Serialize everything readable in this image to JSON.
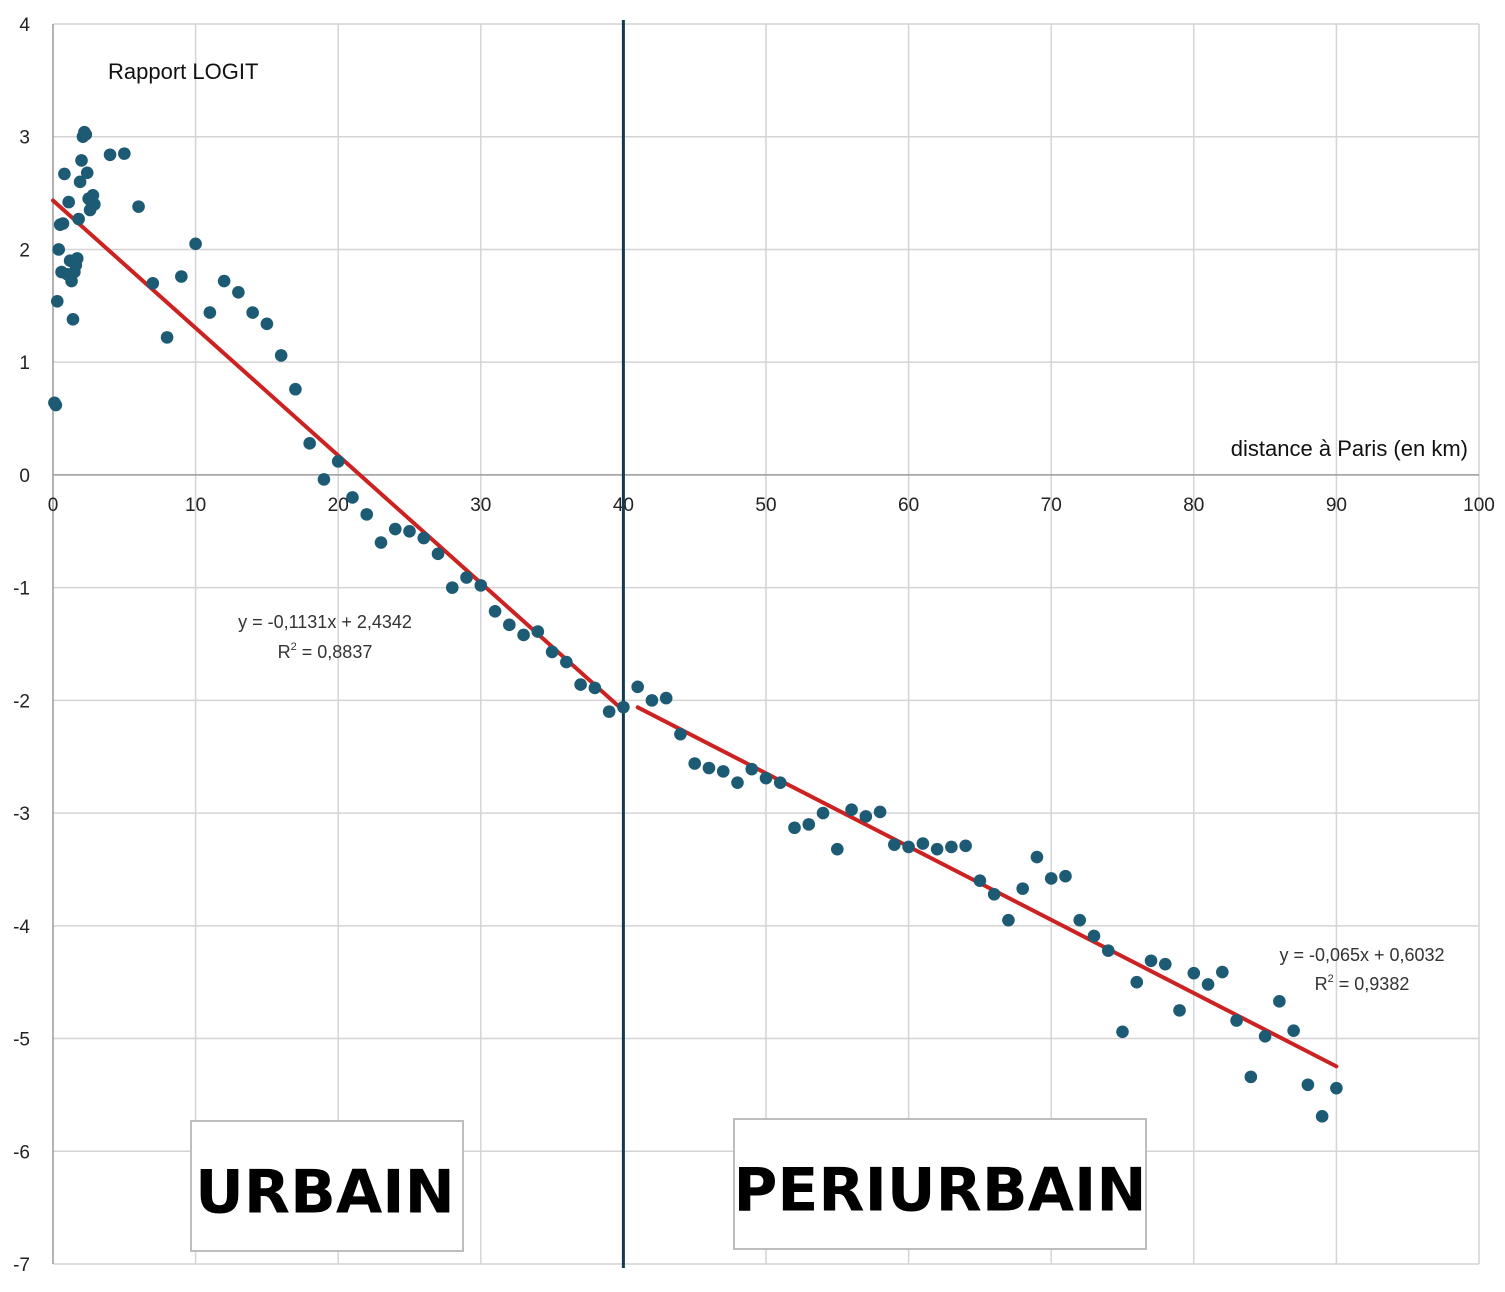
{
  "chart_data": {
    "type": "scatter",
    "title": "",
    "xlabel": "distance à Paris (en km)",
    "ylabel": "Rapport LOGIT",
    "xlim": [
      0,
      100
    ],
    "ylim": [
      -7,
      4
    ],
    "x_ticks": [
      0,
      10,
      20,
      30,
      40,
      50,
      60,
      70,
      80,
      90,
      100
    ],
    "y_ticks": [
      4,
      3,
      2,
      1,
      0,
      -1,
      -2,
      -3,
      -4,
      -5,
      -6,
      -7
    ],
    "grid": true,
    "colors": {
      "points": "#1d5a74",
      "trend": "#cc2222",
      "separator": "#143a52",
      "grid": "#d4d4d4"
    },
    "separator_x": 40,
    "points": [
      [
        0.1,
        0.64
      ],
      [
        0.2,
        0.62
      ],
      [
        0.3,
        1.54
      ],
      [
        0.4,
        2.0
      ],
      [
        0.5,
        2.22
      ],
      [
        0.6,
        1.8
      ],
      [
        0.7,
        2.23
      ],
      [
        0.8,
        2.67
      ],
      [
        1.0,
        1.78
      ],
      [
        1.1,
        2.42
      ],
      [
        1.2,
        1.9
      ],
      [
        1.3,
        1.72
      ],
      [
        1.4,
        1.38
      ],
      [
        1.5,
        1.8
      ],
      [
        1.6,
        1.86
      ],
      [
        1.7,
        1.92
      ],
      [
        1.8,
        2.27
      ],
      [
        1.9,
        2.6
      ],
      [
        2.0,
        2.79
      ],
      [
        2.1,
        3.0
      ],
      [
        2.2,
        3.04
      ],
      [
        2.3,
        3.02
      ],
      [
        2.4,
        2.68
      ],
      [
        2.5,
        2.45
      ],
      [
        2.6,
        2.35
      ],
      [
        2.7,
        2.42
      ],
      [
        2.8,
        2.48
      ],
      [
        2.9,
        2.4
      ],
      [
        4,
        2.84
      ],
      [
        5,
        2.85
      ],
      [
        6,
        2.38
      ],
      [
        7,
        1.7
      ],
      [
        8,
        1.22
      ],
      [
        9,
        1.76
      ],
      [
        10,
        2.05
      ],
      [
        11,
        1.44
      ],
      [
        12,
        1.72
      ],
      [
        13,
        1.62
      ],
      [
        14,
        1.44
      ],
      [
        15,
        1.34
      ],
      [
        16,
        1.06
      ],
      [
        17,
        0.76
      ],
      [
        18,
        0.28
      ],
      [
        19,
        -0.04
      ],
      [
        20,
        0.12
      ],
      [
        21,
        -0.2
      ],
      [
        22,
        -0.35
      ],
      [
        23,
        -0.6
      ],
      [
        24,
        -0.48
      ],
      [
        25,
        -0.5
      ],
      [
        26,
        -0.56
      ],
      [
        27,
        -0.7
      ],
      [
        28,
        -1.0
      ],
      [
        29,
        -0.91
      ],
      [
        30,
        -0.98
      ],
      [
        31,
        -1.21
      ],
      [
        32,
        -1.33
      ],
      [
        33,
        -1.42
      ],
      [
        34,
        -1.39
      ],
      [
        35,
        -1.57
      ],
      [
        36,
        -1.66
      ],
      [
        37,
        -1.86
      ],
      [
        38,
        -1.89
      ],
      [
        39,
        -2.1
      ],
      [
        40,
        -2.06
      ],
      [
        41,
        -1.88
      ],
      [
        42,
        -2.0
      ],
      [
        43,
        -1.98
      ],
      [
        44,
        -2.3
      ],
      [
        45,
        -2.56
      ],
      [
        46,
        -2.6
      ],
      [
        47,
        -2.63
      ],
      [
        48,
        -2.73
      ],
      [
        49,
        -2.61
      ],
      [
        50,
        -2.69
      ],
      [
        51,
        -2.73
      ],
      [
        52,
        -3.13
      ],
      [
        53,
        -3.1
      ],
      [
        54,
        -3.0
      ],
      [
        55,
        -3.32
      ],
      [
        56,
        -2.97
      ],
      [
        57,
        -3.03
      ],
      [
        58,
        -2.99
      ],
      [
        59,
        -3.28
      ],
      [
        60,
        -3.3
      ],
      [
        61,
        -3.27
      ],
      [
        62,
        -3.32
      ],
      [
        63,
        -3.3
      ],
      [
        64,
        -3.29
      ],
      [
        65,
        -3.6
      ],
      [
        66,
        -3.72
      ],
      [
        67,
        -3.95
      ],
      [
        68,
        -3.67
      ],
      [
        69,
        -3.39
      ],
      [
        70,
        -3.58
      ],
      [
        71,
        -3.56
      ],
      [
        72,
        -3.95
      ],
      [
        73,
        -4.09
      ],
      [
        74,
        -4.22
      ],
      [
        75,
        -4.94
      ],
      [
        76,
        -4.5
      ],
      [
        77,
        -4.31
      ],
      [
        78,
        -4.34
      ],
      [
        79,
        -4.75
      ],
      [
        80,
        -4.42
      ],
      [
        81,
        -4.52
      ],
      [
        82,
        -4.41
      ],
      [
        83,
        -4.84
      ],
      [
        84,
        -5.34
      ],
      [
        85,
        -4.98
      ],
      [
        86,
        -4.67
      ],
      [
        87,
        -4.93
      ],
      [
        88,
        -5.41
      ],
      [
        89,
        -5.69
      ],
      [
        90,
        -5.44
      ]
    ],
    "trendlines": [
      {
        "name": "urbain",
        "x_range": [
          0,
          40
        ],
        "slope": -0.1131,
        "intercept": 2.4342,
        "equation": "y = -0,1131x + 2,4342",
        "r2_prefix": "R",
        "r2_exp": "2",
        "r2_value": " = 0,8837"
      },
      {
        "name": "periurbain",
        "x_range": [
          41,
          90
        ],
        "slope": -0.065,
        "intercept": 0.6032,
        "equation": "y = -0,065x + 0,6032",
        "r2_prefix": "R",
        "r2_exp": "2",
        "r2_value": " = 0,9382"
      }
    ],
    "regions": [
      {
        "name": "urbain",
        "label": "URBAIN"
      },
      {
        "name": "periurbain",
        "label": "PERIURBAIN"
      }
    ]
  }
}
